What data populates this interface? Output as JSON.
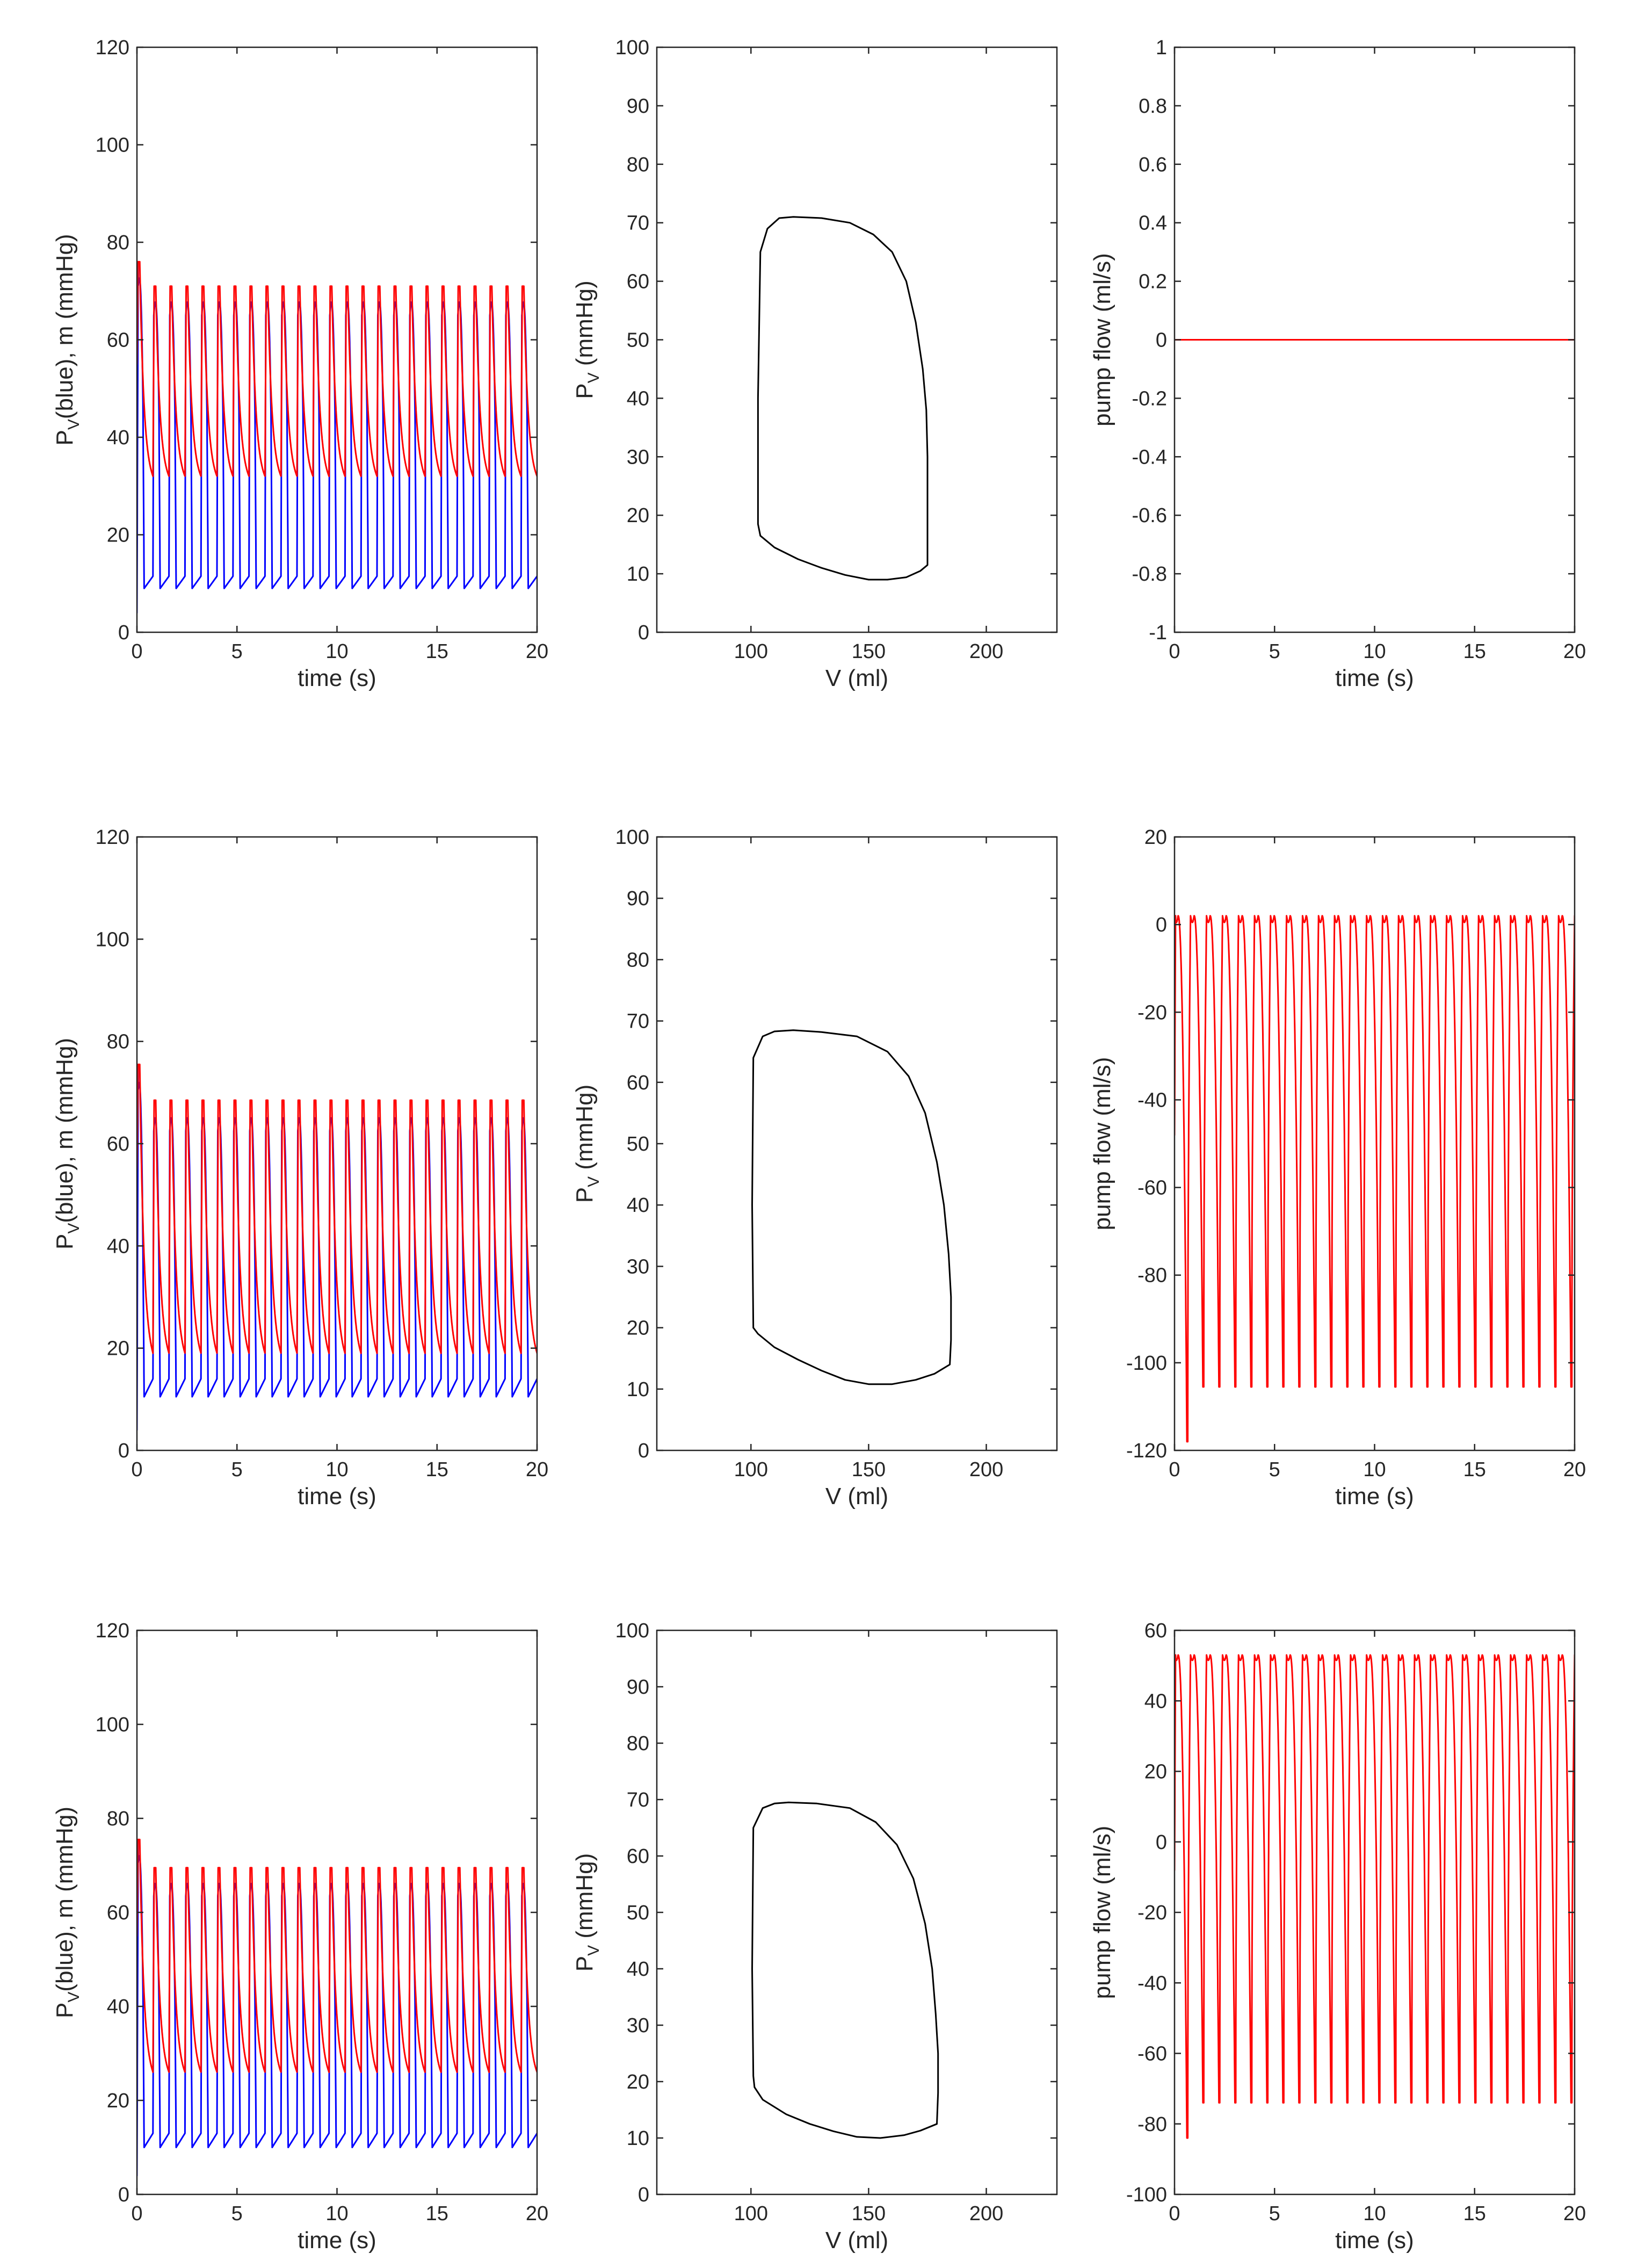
{
  "colors": {
    "blue": "#0000ff",
    "red": "#ff0000",
    "black": "#000000",
    "axis": "#262626"
  },
  "chart_data": [
    {
      "id": "r1c1",
      "type": "line",
      "title": "",
      "xlabel": "time (s)",
      "ylabel_main": "P",
      "ylabel_sub": "V",
      "ylabel_rest": "(blue), m (mmHg)",
      "xlim": [
        0,
        20
      ],
      "ylim": [
        0,
        120
      ],
      "xticks": [
        0,
        5,
        10,
        15,
        20
      ],
      "yticks": [
        0,
        20,
        40,
        60,
        80,
        100,
        120
      ],
      "generator": "pressure",
      "params": {
        "Pd": 9,
        "Pdias_blue": 11.5,
        "Ppk": 71,
        "Pmin": 32,
        "P0pk": 76,
        "period": 0.8,
        "tmax": 20
      },
      "series": [
        {
          "name": "P_V (blue)",
          "color": "blue"
        },
        {
          "name": "m",
          "color": "red"
        }
      ]
    },
    {
      "id": "r1c2",
      "type": "line",
      "title": "",
      "xlabel": "V (ml)",
      "ylabel_main": "P",
      "ylabel_sub": "V",
      "ylabel_rest": " (mmHg)",
      "xlim": [
        60,
        230
      ],
      "ylim": [
        0,
        100
      ],
      "xticks": [
        100,
        150,
        200
      ],
      "yticks": [
        0,
        10,
        20,
        30,
        40,
        50,
        60,
        70,
        80,
        90,
        100
      ],
      "generator": "loop",
      "series": [
        {
          "name": "PV loop",
          "color": "black",
          "x": [
            103,
            103,
            104,
            107,
            112,
            118,
            130,
            142,
            152,
            160,
            166,
            170,
            173,
            174.5,
            175,
            175,
            175,
            172,
            166,
            158,
            150,
            140,
            130,
            120,
            110,
            104,
            103
          ],
          "y": [
            18.5,
            40,
            65,
            69,
            70.8,
            71,
            70.8,
            70,
            68,
            65,
            60,
            53,
            45,
            38,
            30,
            20,
            11.5,
            10.5,
            9.4,
            9,
            9,
            9.8,
            11,
            12.5,
            14.5,
            16.5,
            18.5
          ]
        }
      ]
    },
    {
      "id": "r1c3",
      "type": "line",
      "title": "",
      "xlabel": "time (s)",
      "ylabel": "pump flow (ml/s)",
      "xlim": [
        0,
        20
      ],
      "ylim": [
        -1,
        1
      ],
      "xticks": [
        0,
        5,
        10,
        15,
        20
      ],
      "yticks": [
        -1,
        -0.8,
        -0.6,
        -0.4,
        -0.2,
        0,
        0.2,
        0.4,
        0.6,
        0.8,
        1
      ],
      "generator": "constant",
      "series": [
        {
          "name": "pump flow",
          "color": "red",
          "x": [
            0,
            20
          ],
          "y": [
            0,
            0
          ]
        }
      ]
    },
    {
      "id": "r2c1",
      "type": "line",
      "title": "",
      "xlabel": "time (s)",
      "ylabel_main": "P",
      "ylabel_sub": "V",
      "ylabel_rest": "(blue), m (mmHg)",
      "xlim": [
        0,
        20
      ],
      "ylim": [
        0,
        120
      ],
      "xticks": [
        0,
        5,
        10,
        15,
        20
      ],
      "yticks": [
        0,
        20,
        40,
        60,
        80,
        100,
        120
      ],
      "generator": "pressure",
      "params": {
        "Pd": 10.5,
        "Pdias_blue": 14,
        "Ppk": 68.5,
        "Pmin": 19,
        "P0pk": 75.5,
        "period": 0.8,
        "tmax": 20
      },
      "series": [
        {
          "name": "P_V (blue)",
          "color": "blue"
        },
        {
          "name": "m",
          "color": "red"
        }
      ]
    },
    {
      "id": "r2c2",
      "type": "line",
      "title": "",
      "xlabel": "V (ml)",
      "ylabel_main": "P",
      "ylabel_sub": "V",
      "ylabel_rest": " (mmHg)",
      "xlim": [
        60,
        230
      ],
      "ylim": [
        0,
        100
      ],
      "xticks": [
        100,
        150,
        200
      ],
      "yticks": [
        0,
        10,
        20,
        30,
        40,
        50,
        60,
        70,
        80,
        90,
        100
      ],
      "generator": "loop",
      "series": [
        {
          "name": "PV loop",
          "color": "black",
          "x": [
            101,
            100.5,
            101,
            105,
            110,
            118,
            130,
            145,
            158,
            167,
            174,
            179,
            182,
            184,
            185,
            185,
            184.5,
            178,
            170,
            160,
            150,
            140,
            130,
            120,
            110,
            103,
            101
          ],
          "y": [
            20,
            40,
            64,
            67.5,
            68.3,
            68.5,
            68.2,
            67.5,
            65,
            61,
            55,
            47,
            40,
            32,
            25,
            18,
            14,
            12.5,
            11.5,
            10.8,
            10.8,
            11.5,
            13,
            14.8,
            16.8,
            19,
            20
          ]
        }
      ]
    },
    {
      "id": "r2c3",
      "type": "line",
      "title": "",
      "xlabel": "time (s)",
      "ylabel": "pump flow (ml/s)",
      "xlim": [
        0,
        20
      ],
      "ylim": [
        -120,
        20
      ],
      "xticks": [
        0,
        5,
        10,
        15,
        20
      ],
      "yticks": [
        -120,
        -100,
        -80,
        -60,
        -40,
        -20,
        0,
        20
      ],
      "generator": "flow",
      "params": {
        "Fhigh": 2,
        "Flow": -105.5,
        "Finit": -118,
        "Fstart": -48,
        "period": 0.8,
        "tmax": 20
      },
      "series": [
        {
          "name": "pump flow",
          "color": "red"
        }
      ]
    },
    {
      "id": "r3c1",
      "type": "line",
      "title": "",
      "xlabel": "time (s)",
      "ylabel_main": "P",
      "ylabel_sub": "V",
      "ylabel_rest": "(blue), m (mmHg)",
      "xlim": [
        0,
        20
      ],
      "ylim": [
        0,
        120
      ],
      "xticks": [
        0,
        5,
        10,
        15,
        20
      ],
      "yticks": [
        0,
        20,
        40,
        60,
        80,
        100,
        120
      ],
      "generator": "pressure",
      "params": {
        "Pd": 10,
        "Pdias_blue": 13,
        "Ppk": 69.5,
        "Pmin": 26,
        "P0pk": 75.5,
        "period": 0.8,
        "tmax": 20
      },
      "series": [
        {
          "name": "P_V (blue)",
          "color": "blue"
        },
        {
          "name": "m",
          "color": "red"
        }
      ]
    },
    {
      "id": "r3c2",
      "type": "line",
      "title": "",
      "xlabel": "V (ml)",
      "ylabel_main": "P",
      "ylabel_sub": "V",
      "ylabel_rest": " (mmHg)",
      "xlim": [
        60,
        230
      ],
      "ylim": [
        0,
        100
      ],
      "xticks": [
        100,
        150,
        200
      ],
      "yticks": [
        0,
        10,
        20,
        30,
        40,
        50,
        60,
        70,
        80,
        90,
        100
      ],
      "generator": "loop",
      "series": [
        {
          "name": "PV loop",
          "color": "black",
          "x": [
            101,
            100.5,
            101,
            105,
            110,
            116,
            128,
            142,
            153,
            162,
            169,
            174,
            177,
            178.5,
            179.5,
            179.5,
            179,
            172,
            165,
            155,
            145,
            135,
            125,
            115,
            105,
            101.5,
            101
          ],
          "y": [
            21,
            40,
            65,
            68.5,
            69.3,
            69.5,
            69.3,
            68.5,
            66,
            62,
            56,
            48,
            40,
            32,
            25,
            18,
            12.5,
            11.3,
            10.5,
            10,
            10.2,
            11.2,
            12.5,
            14.2,
            16.8,
            19,
            21
          ]
        }
      ]
    },
    {
      "id": "r3c3",
      "type": "line",
      "title": "",
      "xlabel": "time (s)",
      "ylabel": "pump flow (ml/s)",
      "xlim": [
        0,
        20
      ],
      "ylim": [
        -100,
        60
      ],
      "xticks": [
        0,
        5,
        10,
        15,
        20
      ],
      "yticks": [
        -100,
        -80,
        -60,
        -40,
        -20,
        0,
        20,
        40,
        60
      ],
      "generator": "flow",
      "params": {
        "Fhigh": 53,
        "Flow": -74,
        "Finit": -84,
        "Fstart": -8,
        "period": 0.8,
        "tmax": 20
      },
      "series": [
        {
          "name": "pump flow",
          "color": "red"
        }
      ]
    }
  ]
}
